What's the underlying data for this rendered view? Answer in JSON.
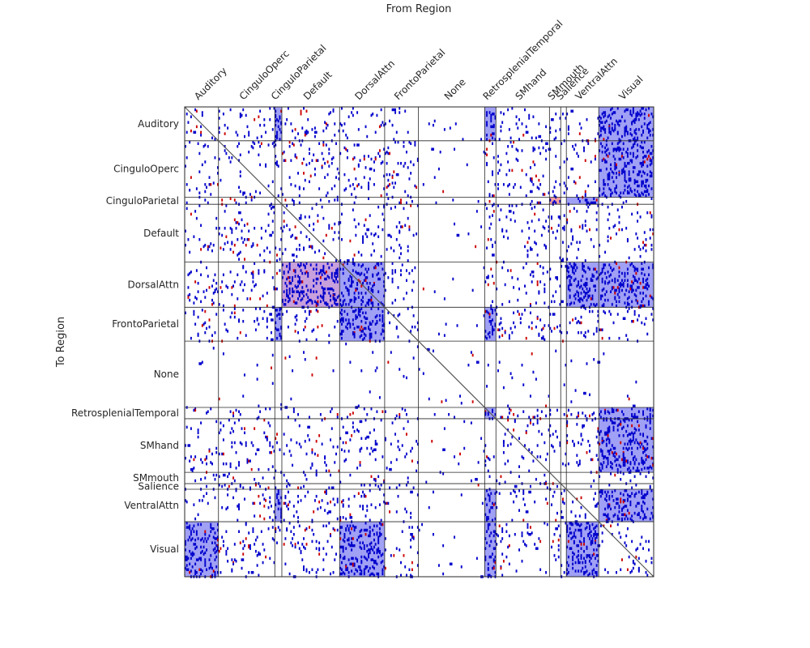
{
  "chart_data": {
    "type": "heatmap",
    "title": "From Region",
    "ylabel": "To Region",
    "regions": [
      {
        "name": "Auditory",
        "size": 24
      },
      {
        "name": "CinguloOperc",
        "size": 40
      },
      {
        "name": "CinguloParietal",
        "size": 5
      },
      {
        "name": "Default",
        "size": 41
      },
      {
        "name": "DorsalAttn",
        "size": 32
      },
      {
        "name": "FrontoParietal",
        "size": 24
      },
      {
        "name": "None",
        "size": 47
      },
      {
        "name": "RetrosplenialTemporal",
        "size": 8
      },
      {
        "name": "SMhand",
        "size": 38
      },
      {
        "name": "SMmouth",
        "size": 8
      },
      {
        "name": "Salience",
        "size": 4
      },
      {
        "name": "VentralAttn",
        "size": 23
      },
      {
        "name": "Visual",
        "size": 39
      }
    ],
    "highlighted_blocks": [
      {
        "from": "Visual",
        "to": "Auditory",
        "color": "blue"
      },
      {
        "from": "CinguloParietal",
        "to": "Auditory",
        "color": "blue"
      },
      {
        "from": "RetrosplenialTemporal",
        "to": "Auditory",
        "color": "blue"
      },
      {
        "from": "Visual",
        "to": "CinguloOperc",
        "color": "blue"
      },
      {
        "from": "SMmouth",
        "to": "CinguloParietal",
        "color": "red"
      },
      {
        "from": "VentralAttn",
        "to": "CinguloParietal",
        "color": "blue"
      },
      {
        "from": "Default",
        "to": "DorsalAttn",
        "color": "purple"
      },
      {
        "from": "DorsalAttn",
        "to": "DorsalAttn",
        "color": "blue"
      },
      {
        "from": "VentralAttn",
        "to": "DorsalAttn",
        "color": "blue"
      },
      {
        "from": "Visual",
        "to": "DorsalAttn",
        "color": "blue"
      },
      {
        "from": "CinguloParietal",
        "to": "FrontoParietal",
        "color": "blue"
      },
      {
        "from": "DorsalAttn",
        "to": "FrontoParietal",
        "color": "blue"
      },
      {
        "from": "RetrosplenialTemporal",
        "to": "FrontoParietal",
        "color": "blue"
      },
      {
        "from": "RetrosplenialTemporal",
        "to": "RetrosplenialTemporal",
        "color": "blue"
      },
      {
        "from": "Visual",
        "to": "RetrosplenialTemporal",
        "color": "blue"
      },
      {
        "from": "Visual",
        "to": "SMhand",
        "color": "blue"
      },
      {
        "from": "CinguloParietal",
        "to": "VentralAttn",
        "color": "blue"
      },
      {
        "from": "RetrosplenialTemporal",
        "to": "VentralAttn",
        "color": "blue"
      },
      {
        "from": "Visual",
        "to": "VentralAttn",
        "color": "blue"
      },
      {
        "from": "Auditory",
        "to": "Visual",
        "color": "blue"
      },
      {
        "from": "DorsalAttn",
        "to": "Visual",
        "color": "blue"
      },
      {
        "from": "RetrosplenialTemporal",
        "to": "Visual",
        "color": "blue"
      },
      {
        "from": "VentralAttn",
        "to": "Visual",
        "color": "blue"
      }
    ],
    "colors": {
      "positive": "#0000cc",
      "negative": "#cc0000",
      "block_blue": "#a0a0f5",
      "block_red": "#f5a0a0",
      "block_purple": "#c8a0dc",
      "grid": "#262626",
      "diagonal": "#555555"
    },
    "grid": true
  }
}
